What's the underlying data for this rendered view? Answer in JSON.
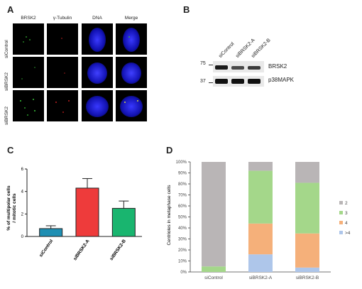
{
  "panelA": {
    "letter": "A",
    "columns": [
      "BRSK2",
      "γ-Tubulin",
      "DNA",
      "Merge"
    ],
    "rows": [
      "siControl",
      "siBRSK2",
      "siBRSK2"
    ]
  },
  "panelB": {
    "letter": "B",
    "lanes": [
      "siControl",
      "siBRSK2-A",
      "siBRSK2-B"
    ],
    "markers": [
      "75",
      "37"
    ],
    "bands": [
      "BRSK2",
      "p38MAPK"
    ]
  },
  "panelC": {
    "letter": "C",
    "ylabel_line1": "% of multipolar cells",
    "ylabel_line2": "/ mitotic cells",
    "yticks": [
      "0",
      "2",
      "4",
      "6"
    ]
  },
  "panelD": {
    "letter": "D",
    "ylabel": "Centrioles in metaphase cells",
    "yticks": [
      "0%",
      "10%",
      "20%",
      "30%",
      "40%",
      "50%",
      "60%",
      "70%",
      "80%",
      "90%",
      "100%"
    ],
    "legend": [
      "2",
      "3",
      "4",
      ">4"
    ]
  },
  "colors": {
    "bar_siControl": "#1f8fb3",
    "bar_siBRSK2A": "#ee3b3b",
    "bar_siBRSK2B": "#19b56f",
    "c2": "#b9b5b6",
    "c3": "#a4d78a",
    "c4": "#f5b07a",
    "c5": "#aec6ea"
  },
  "chart_data": [
    {
      "type": "bar",
      "categories": [
        "siControl",
        "siBRSK2-A",
        "siBRSK2-B"
      ],
      "values": [
        0.7,
        4.3,
        2.5
      ],
      "errors": [
        0.25,
        0.85,
        0.65
      ],
      "ylabel": "% of multipolar cells / mitotic cells",
      "ylim": [
        0,
        6
      ],
      "grid": false
    },
    {
      "type": "bar",
      "stacked": true,
      "categories": [
        "siControl",
        "siBRSK2-A",
        "siBRSK2-B"
      ],
      "series": [
        {
          "name": ">4",
          "values": [
            0,
            16,
            4
          ]
        },
        {
          "name": "4",
          "values": [
            0,
            28,
            31
          ]
        },
        {
          "name": "3",
          "values": [
            5,
            48,
            46
          ]
        },
        {
          "name": "2",
          "values": [
            95,
            8,
            19
          ]
        }
      ],
      "ylabel": "Centrioles in metaphase cells",
      "ylim": [
        0,
        100
      ],
      "legend": "right",
      "grid": false
    }
  ]
}
